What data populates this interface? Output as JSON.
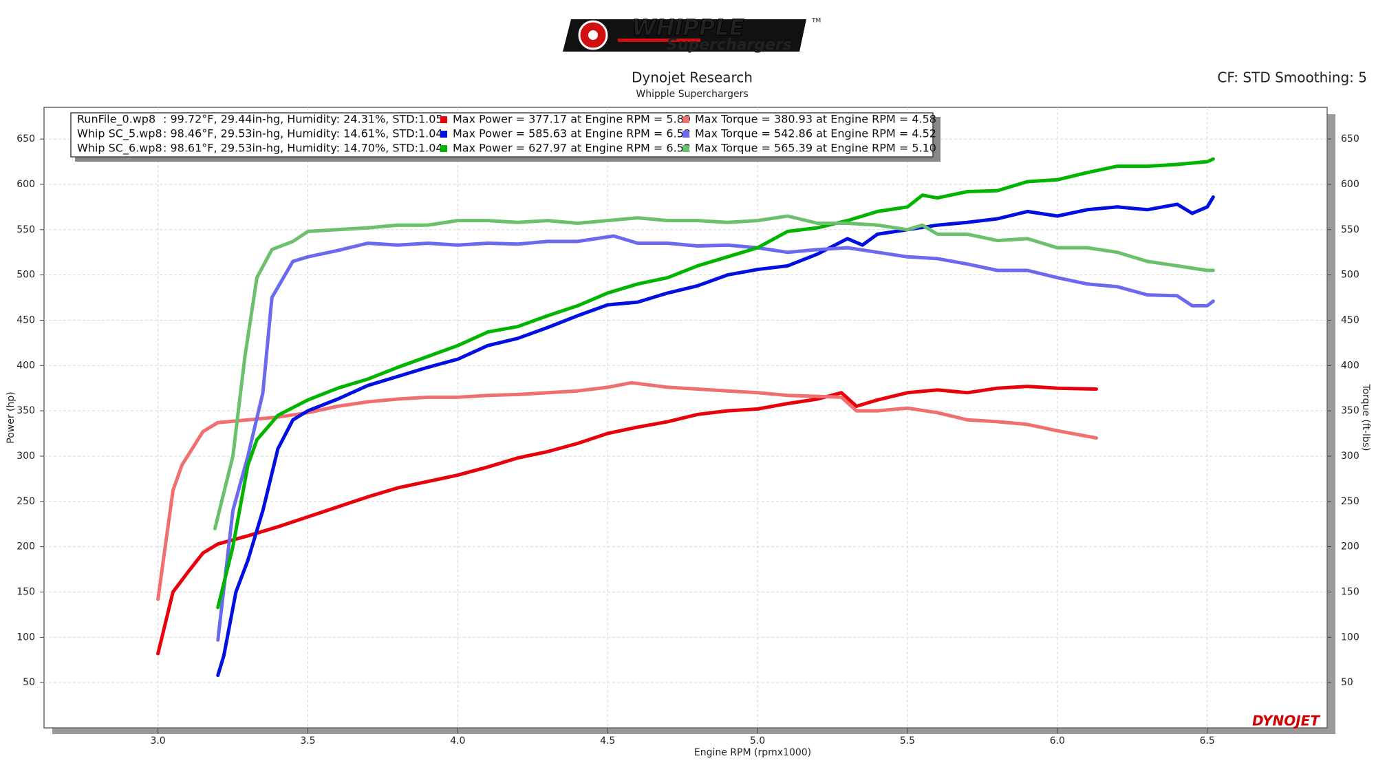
{
  "logo": {
    "brand": "WHIPPLE",
    "tagline": "Superchargers",
    "mark": "TM"
  },
  "watermark": "DYNOJET",
  "chart_data": {
    "type": "line",
    "title": "Dynojet Research",
    "subtitle": "Whipple Superchargers",
    "settings_label": "CF: STD Smoothing: 5",
    "x_label": "Engine RPM (rpmx1000)",
    "y_label": "Power (hp)",
    "y2_label": "Torque (ft-lbs)",
    "xlim": [
      2.62,
      6.9
    ],
    "ylim": [
      0,
      685
    ],
    "y2lim": [
      0,
      685
    ],
    "xticks": [
      {
        "value": 3,
        "label": "3.0"
      },
      3.5,
      {
        "value": 4,
        "label": "4.0"
      },
      4.5,
      {
        "value": 5,
        "label": "5.0"
      },
      5.5,
      {
        "value": 6,
        "label": "6.0"
      },
      6.5
    ],
    "yticks": [
      50,
      100,
      150,
      200,
      250,
      300,
      350,
      400,
      450,
      500,
      550,
      600,
      650
    ],
    "y2ticks": [
      50,
      100,
      150,
      200,
      250,
      300,
      350,
      400,
      450,
      500,
      550,
      600,
      650
    ],
    "grid": true,
    "runs": [
      {
        "file": "RunFile_0.wp8",
        "conditions": ": 99.72°F, 29.44in-hg, Humidity: 24.31%, STD:1.05"
      },
      {
        "file": "Whip SC_5.wp8",
        "conditions": ": 98.46°F, 29.53in-hg, Humidity: 14.61%, STD:1.04"
      },
      {
        "file": "Whip SC_6.wp8",
        "conditions": ": 98.61°F, 29.53in-hg, Humidity: 14.70%, STD:1.04"
      }
    ],
    "series": [
      {
        "name": "Max Power = 377.17 at Engine RPM = 5.89",
        "color": "#e8000b",
        "x": [
          3.0,
          3.05,
          3.1,
          3.15,
          3.2,
          3.3,
          3.4,
          3.5,
          3.6,
          3.7,
          3.8,
          3.9,
          4.0,
          4.1,
          4.2,
          4.3,
          4.4,
          4.5,
          4.6,
          4.7,
          4.8,
          4.9,
          5.0,
          5.1,
          5.2,
          5.28,
          5.33,
          5.4,
          5.5,
          5.6,
          5.7,
          5.8,
          5.9,
          6.0,
          6.13
        ],
        "values": [
          82,
          150,
          172,
          193,
          203,
          212,
          222,
          233,
          244,
          255,
          265,
          272,
          279,
          288,
          298,
          305,
          314,
          325,
          332,
          338,
          346,
          350,
          352,
          358,
          363,
          370,
          355,
          362,
          370,
          373,
          370,
          375,
          377,
          375,
          374
        ]
      },
      {
        "name": "Max Torque = 380.93 at Engine RPM = 4.58",
        "color": "#f07070",
        "axis": "y2",
        "x": [
          3.0,
          3.05,
          3.08,
          3.15,
          3.2,
          3.3,
          3.4,
          3.5,
          3.6,
          3.7,
          3.8,
          3.9,
          4.0,
          4.1,
          4.2,
          4.3,
          4.4,
          4.5,
          4.58,
          4.7,
          4.8,
          4.9,
          5.0,
          5.1,
          5.2,
          5.28,
          5.33,
          5.4,
          5.5,
          5.6,
          5.7,
          5.8,
          5.9,
          6.0,
          6.13
        ],
        "values": [
          142,
          262,
          290,
          327,
          337,
          340,
          343,
          348,
          355,
          360,
          363,
          365,
          365,
          367,
          368,
          370,
          372,
          376,
          381,
          376,
          374,
          372,
          370,
          367,
          366,
          365,
          350,
          350,
          353,
          348,
          340,
          338,
          335,
          328,
          320
        ]
      },
      {
        "name": "Max Power = 585.63 at Engine RPM = 6.52",
        "color": "#0010e0",
        "x": [
          3.2,
          3.22,
          3.26,
          3.3,
          3.35,
          3.4,
          3.45,
          3.5,
          3.6,
          3.7,
          3.8,
          3.9,
          4.0,
          4.1,
          4.2,
          4.3,
          4.4,
          4.5,
          4.6,
          4.7,
          4.8,
          4.9,
          5.0,
          5.1,
          5.2,
          5.3,
          5.35,
          5.4,
          5.5,
          5.6,
          5.7,
          5.8,
          5.9,
          6.0,
          6.1,
          6.2,
          6.3,
          6.4,
          6.45,
          6.5,
          6.52
        ],
        "values": [
          58,
          80,
          150,
          185,
          240,
          308,
          340,
          350,
          363,
          378,
          388,
          398,
          407,
          422,
          430,
          442,
          455,
          467,
          470,
          480,
          488,
          500,
          506,
          510,
          523,
          540,
          533,
          545,
          550,
          555,
          558,
          562,
          570,
          565,
          572,
          575,
          572,
          578,
          568,
          575,
          586
        ]
      },
      {
        "name": "Max Torque = 542.86 at Engine RPM = 4.52",
        "color": "#6a6aee",
        "axis": "y2",
        "x": [
          3.2,
          3.25,
          3.3,
          3.35,
          3.38,
          3.45,
          3.5,
          3.6,
          3.7,
          3.8,
          3.9,
          4.0,
          4.1,
          4.2,
          4.3,
          4.4,
          4.52,
          4.6,
          4.7,
          4.8,
          4.9,
          5.0,
          5.1,
          5.2,
          5.3,
          5.4,
          5.5,
          5.6,
          5.7,
          5.8,
          5.9,
          6.0,
          6.1,
          6.2,
          6.3,
          6.4,
          6.45,
          6.5,
          6.52
        ],
        "values": [
          97,
          240,
          300,
          370,
          475,
          515,
          520,
          527,
          535,
          533,
          535,
          533,
          535,
          534,
          537,
          537,
          543,
          535,
          535,
          532,
          533,
          530,
          525,
          528,
          530,
          525,
          520,
          518,
          512,
          505,
          505,
          497,
          490,
          487,
          478,
          477,
          466,
          466,
          471
        ]
      },
      {
        "name": "Max Power = 627.97 at Engine RPM = 6.52",
        "color": "#00b400",
        "x": [
          3.2,
          3.25,
          3.3,
          3.33,
          3.4,
          3.5,
          3.6,
          3.7,
          3.8,
          3.9,
          4.0,
          4.1,
          4.2,
          4.3,
          4.4,
          4.5,
          4.6,
          4.7,
          4.8,
          4.9,
          5.0,
          5.1,
          5.2,
          5.3,
          5.4,
          5.5,
          5.55,
          5.6,
          5.7,
          5.8,
          5.9,
          6.0,
          6.1,
          6.2,
          6.3,
          6.4,
          6.5,
          6.52
        ],
        "values": [
          133,
          200,
          290,
          318,
          345,
          362,
          375,
          385,
          398,
          410,
          422,
          437,
          443,
          455,
          466,
          480,
          490,
          497,
          510,
          520,
          530,
          548,
          552,
          560,
          570,
          575,
          588,
          585,
          592,
          593,
          603,
          605,
          613,
          620,
          620,
          622,
          625,
          628
        ]
      },
      {
        "name": "Max Torque = 565.39 at Engine RPM = 5.10",
        "color": "#6cbf6c",
        "axis": "y2",
        "x": [
          3.19,
          3.25,
          3.29,
          3.33,
          3.38,
          3.45,
          3.5,
          3.6,
          3.7,
          3.8,
          3.9,
          4.0,
          4.1,
          4.2,
          4.3,
          4.4,
          4.5,
          4.6,
          4.7,
          4.8,
          4.9,
          5.0,
          5.1,
          5.2,
          5.3,
          5.4,
          5.5,
          5.55,
          5.6,
          5.7,
          5.8,
          5.9,
          6.0,
          6.1,
          6.2,
          6.3,
          6.4,
          6.5,
          6.52
        ],
        "values": [
          220,
          300,
          410,
          497,
          528,
          537,
          548,
          550,
          552,
          555,
          555,
          560,
          560,
          558,
          560,
          557,
          560,
          563,
          560,
          560,
          558,
          560,
          565,
          557,
          557,
          555,
          550,
          555,
          545,
          545,
          538,
          540,
          530,
          530,
          525,
          515,
          510,
          505,
          505
        ]
      }
    ]
  }
}
